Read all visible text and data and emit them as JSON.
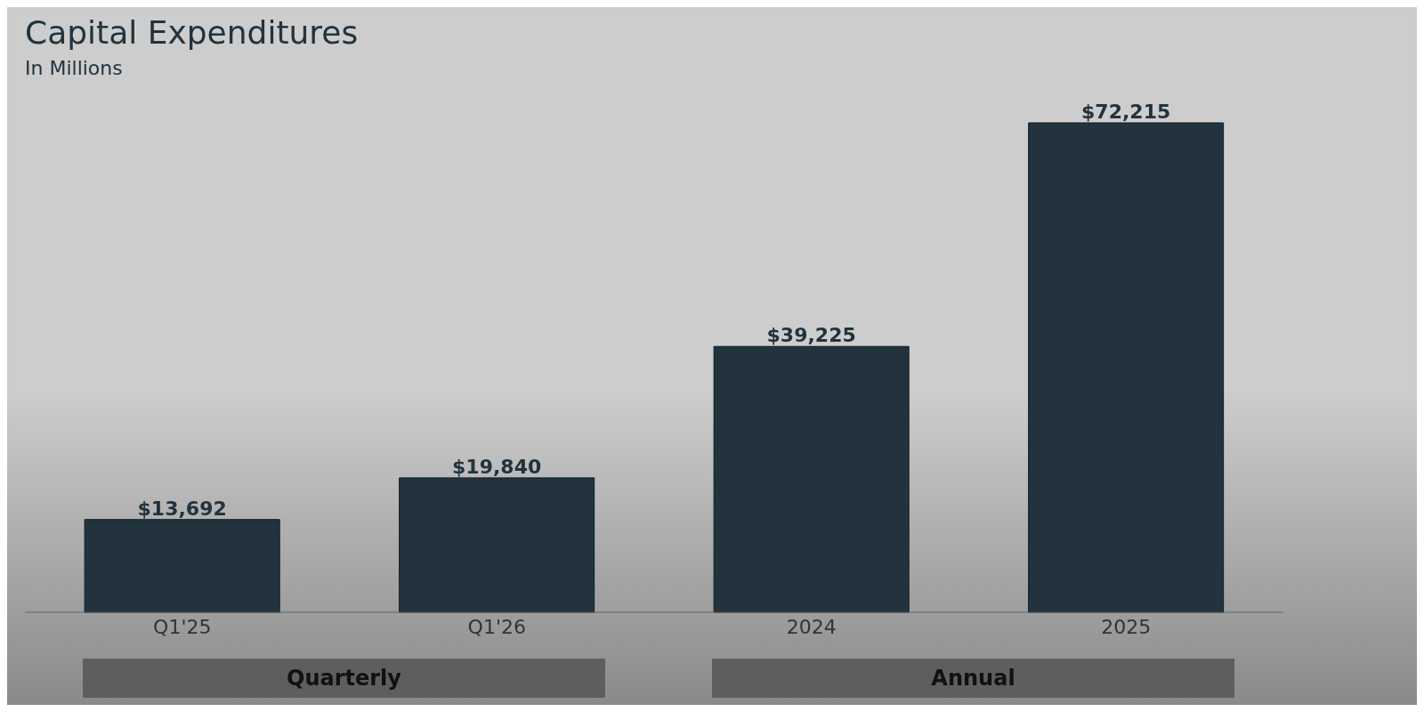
{
  "chart_data": {
    "type": "bar",
    "title": "Capital Expenditures",
    "subtitle": "In Millions",
    "categories": [
      "Q1'25",
      "Q1'26",
      "2024",
      "2025"
    ],
    "values": [
      13692,
      19840,
      39225,
      72215
    ],
    "value_labels": [
      "$13,692",
      "$19,840",
      "$39,225",
      "$72,215"
    ],
    "color": "#22333d",
    "annotations": [
      "Quarterly",
      "Annual"
    ],
    "grid": false,
    "legend": false
  }
}
